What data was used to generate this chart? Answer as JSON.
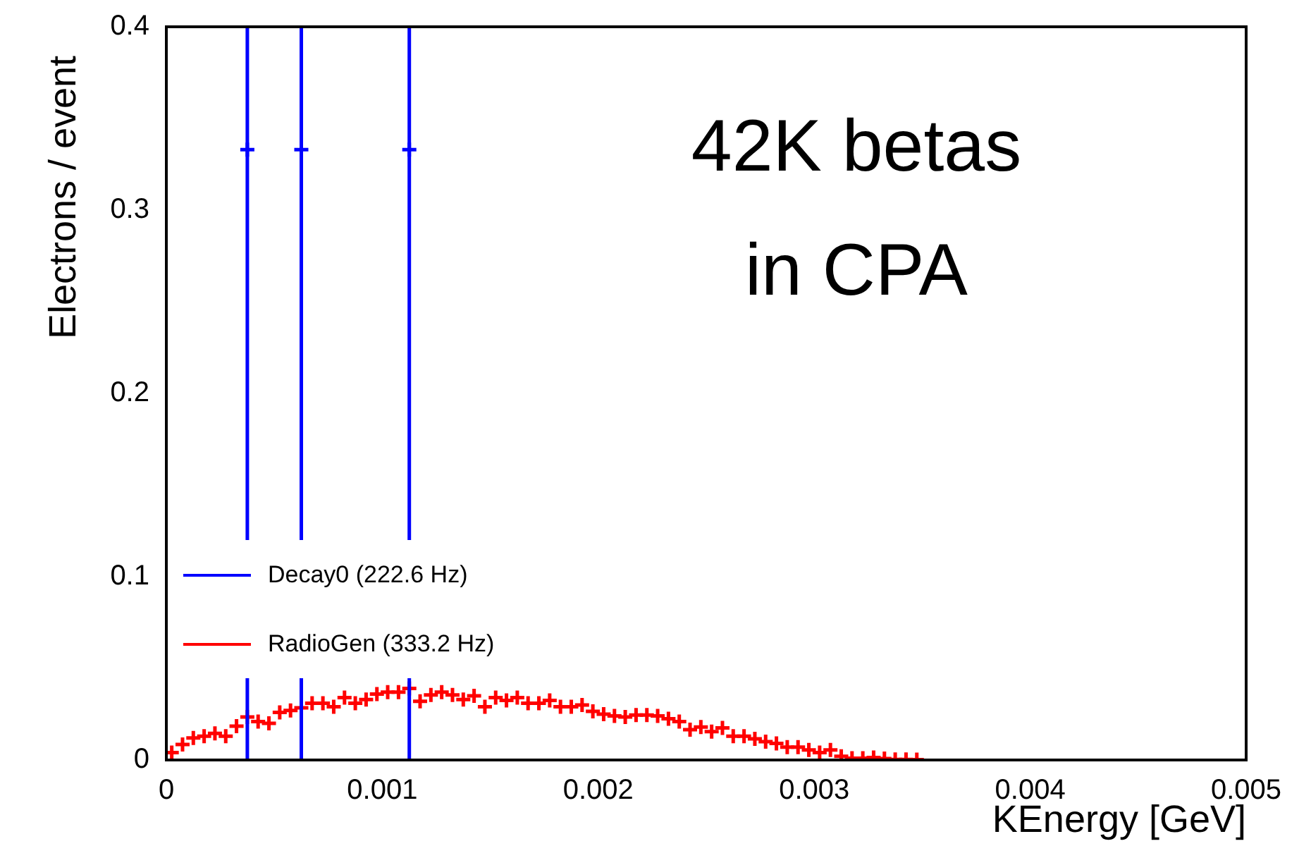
{
  "chart_data": {
    "type": "scatter",
    "annotations": [
      "42K betas in CPA"
    ],
    "xlabel": "KEnergy [GeV]",
    "ylabel": "Electrons / event",
    "xlim": [
      0,
      0.005
    ],
    "xticks": [
      0,
      0.001,
      0.002,
      0.003,
      0.004,
      0.005
    ],
    "ylim": [
      0,
      0.4
    ],
    "yticks": [
      0,
      0.1,
      0.2,
      0.3,
      0.4
    ],
    "grid": false,
    "legend": "bottom left",
    "marker": "cross",
    "series": [
      {
        "name": "Decay0 (222.6 Hz)",
        "color": "#0000ff",
        "x": [
          0.000375,
          0.000625,
          0.001125
        ],
        "values": [
          0.333,
          0.333,
          0.333
        ],
        "errors": [
          [
            0,
            0.4
          ],
          [
            0,
            0.4
          ],
          [
            0,
            0.4
          ]
        ]
      },
      {
        "name": "RadioGen (333.2 Hz)",
        "color": "#ff0000",
        "x": [
          2.5e-05,
          7.5e-05,
          0.000125,
          0.000175,
          0.000225,
          0.000275,
          0.000325,
          0.000375,
          0.000425,
          0.000475,
          0.000525,
          0.000575,
          0.000625,
          0.000675,
          0.000725,
          0.000775,
          0.000825,
          0.000875,
          0.000925,
          0.000975,
          0.001025,
          0.001075,
          0.001125,
          0.001175,
          0.001225,
          0.001275,
          0.001325,
          0.001375,
          0.001425,
          0.001475,
          0.001525,
          0.001575,
          0.001625,
          0.001675,
          0.001725,
          0.001775,
          0.001825,
          0.001875,
          0.001925,
          0.001975,
          0.002025,
          0.002075,
          0.002125,
          0.002175,
          0.002225,
          0.002275,
          0.002325,
          0.002375,
          0.002425,
          0.002475,
          0.002525,
          0.002575,
          0.002625,
          0.002675,
          0.002725,
          0.002775,
          0.002825,
          0.002875,
          0.002925,
          0.002975,
          0.003025,
          0.003075,
          0.003125,
          0.003175,
          0.003225,
          0.003275,
          0.003325,
          0.003375,
          0.003425,
          0.003475
        ],
        "values": [
          0.004,
          0.0085,
          0.012,
          0.013,
          0.0145,
          0.013,
          0.0185,
          0.0235,
          0.021,
          0.02,
          0.026,
          0.027,
          0.0285,
          0.031,
          0.031,
          0.029,
          0.034,
          0.031,
          0.033,
          0.036,
          0.037,
          0.037,
          0.039,
          0.032,
          0.0355,
          0.037,
          0.0355,
          0.033,
          0.035,
          0.029,
          0.034,
          0.0325,
          0.034,
          0.031,
          0.031,
          0.0325,
          0.029,
          0.029,
          0.03,
          0.0265,
          0.025,
          0.024,
          0.0235,
          0.0245,
          0.0245,
          0.024,
          0.0225,
          0.021,
          0.0165,
          0.018,
          0.0155,
          0.0175,
          0.013,
          0.013,
          0.0115,
          0.01,
          0.009,
          0.007,
          0.007,
          0.0055,
          0.004,
          0.0055,
          0.002,
          0.001,
          0.001,
          0.0013,
          0.0008,
          0.0003,
          0.0003,
          0.0002
        ]
      }
    ]
  }
}
